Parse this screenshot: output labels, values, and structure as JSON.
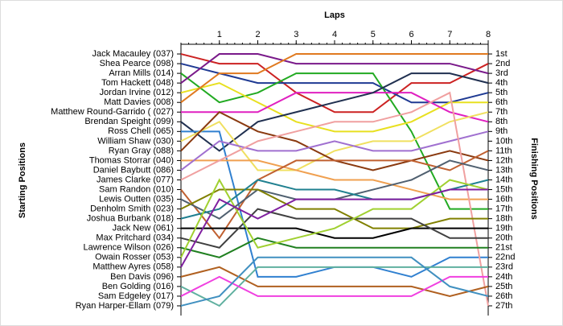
{
  "chart_data": {
    "type": "line",
    "x_title": "Laps",
    "y_title": "Starting Positions",
    "y2_title": "Finishing Positions",
    "x": [
      0,
      1,
      2,
      3,
      4,
      5,
      6,
      7,
      8
    ],
    "xlim": [
      0,
      8
    ],
    "xticks": [
      1,
      2,
      3,
      4,
      5,
      6,
      7,
      8
    ],
    "ylim": [
      0,
      28
    ],
    "y_inverted": true,
    "yticks": [
      {
        "value": 1,
        "label": "1st"
      },
      {
        "value": 2,
        "label": "2nd"
      },
      {
        "value": 3,
        "label": "3rd"
      },
      {
        "value": 4,
        "label": "4th"
      },
      {
        "value": 5,
        "label": "5th"
      },
      {
        "value": 6,
        "label": "6th"
      },
      {
        "value": 7,
        "label": "7th"
      },
      {
        "value": 8,
        "label": "8th"
      },
      {
        "value": 9,
        "label": "9th"
      },
      {
        "value": 10,
        "label": "10th"
      },
      {
        "value": 11,
        "label": "11th"
      },
      {
        "value": 12,
        "label": "12th"
      },
      {
        "value": 13,
        "label": "13th"
      },
      {
        "value": 14,
        "label": "14th"
      },
      {
        "value": 15,
        "label": "15th"
      },
      {
        "value": 16,
        "label": "16th"
      },
      {
        "value": 17,
        "label": "17th"
      },
      {
        "value": 18,
        "label": "18th"
      },
      {
        "value": 19,
        "label": "19th"
      },
      {
        "value": 20,
        "label": "20th"
      },
      {
        "value": 21,
        "label": "21st"
      },
      {
        "value": 22,
        "label": "22nd"
      },
      {
        "value": 23,
        "label": "23rd"
      },
      {
        "value": 24,
        "label": "24th"
      },
      {
        "value": 25,
        "label": "25th"
      },
      {
        "value": 26,
        "label": "26th"
      },
      {
        "value": 27,
        "label": "27th"
      }
    ],
    "series": [
      {
        "name": "Jack Macauley (037)",
        "color": "#cc2222",
        "values": [
          1,
          2,
          2,
          5,
          7,
          7,
          4,
          4,
          2
        ]
      },
      {
        "name": "Shea Pearce (098)",
        "color": "#1f3a93",
        "values": [
          2,
          3,
          4,
          4,
          4,
          4,
          6,
          6,
          5
        ]
      },
      {
        "name": "Arran Mills (014)",
        "color": "#22aa22",
        "values": [
          3,
          6,
          5,
          3,
          3,
          3,
          9,
          17,
          17
        ]
      },
      {
        "name": "Tom Hackett (048)",
        "color": "#7a1a8a",
        "values": [
          4,
          1,
          1,
          2,
          2,
          2,
          2,
          2,
          3
        ]
      },
      {
        "name": "Jordan Irvine (012)",
        "color": "#e8e020",
        "values": [
          5,
          4,
          6,
          8,
          9,
          9,
          8,
          6,
          6
        ]
      },
      {
        "name": "Matt Davies (008)",
        "color": "#e07a20",
        "values": [
          6,
          3,
          3,
          1,
          1,
          1,
          1,
          1,
          1
        ]
      },
      {
        "name": "Matthew Round-Garrido ( (027)",
        "color": "#e020c0",
        "values": [
          7,
          7,
          7,
          5,
          5,
          5,
          5,
          7,
          8
        ]
      },
      {
        "name": "Brendan Speight (099)",
        "color": "#203050",
        "values": [
          8,
          11,
          8,
          7,
          6,
          5,
          3,
          3,
          4
        ]
      },
      {
        "name": "Ross Chell (065)",
        "color": "#3080d0",
        "values": [
          9,
          9,
          24,
          24,
          23,
          23,
          24,
          22,
          22
        ]
      },
      {
        "name": "William Shaw (030)",
        "color": "#f0e060",
        "values": [
          10,
          8,
          13,
          13,
          11,
          10,
          10,
          8,
          7
        ]
      },
      {
        "name": "Ryan Gray (088)",
        "color": "#8a3a10",
        "values": [
          11,
          7,
          9,
          10,
          12,
          13,
          12,
          11,
          12
        ]
      },
      {
        "name": "Thomas Storrar (040)",
        "color": "#f0a050",
        "values": [
          12,
          12,
          12,
          13,
          14,
          14,
          15,
          16,
          16
        ]
      },
      {
        "name": "Daniel Baybutt (086)",
        "color": "#a070d0",
        "values": [
          13,
          10,
          11,
          11,
          10,
          11,
          11,
          10,
          9
        ]
      },
      {
        "name": "James Clarke (077)",
        "color": "#f0a0a0",
        "values": [
          14,
          12,
          10,
          9,
          8,
          8,
          7,
          5,
          27
        ]
      },
      {
        "name": "Sam Randon (010)",
        "color": "#c06030",
        "values": [
          15,
          20,
          14,
          12,
          12,
          12,
          12,
          13,
          11
        ]
      },
      {
        "name": "Lewis Outten (035)",
        "color": "#506070",
        "values": [
          16,
          18,
          15,
          16,
          16,
          15,
          14,
          12,
          13
        ]
      },
      {
        "name": "Denholm Smith (023)",
        "color": "#808000",
        "values": [
          17,
          15,
          15,
          17,
          17,
          19,
          19,
          18,
          18
        ]
      },
      {
        "name": "Joshua Burbank (018)",
        "color": "#208090",
        "values": [
          18,
          17,
          14,
          15,
          15,
          16,
          16,
          15,
          14
        ]
      },
      {
        "name": "Jack New (061)",
        "color": "#000000",
        "values": [
          19,
          19,
          19,
          19,
          20,
          20,
          19,
          19,
          19
        ]
      },
      {
        "name": "Max Pritchard (034)",
        "color": "#404040",
        "values": [
          20,
          21,
          17,
          18,
          18,
          18,
          18,
          20,
          20
        ]
      },
      {
        "name": "Lawrence Wilson (026)",
        "color": "#208020",
        "values": [
          21,
          22,
          20,
          21,
          21,
          21,
          21,
          21,
          21
        ]
      },
      {
        "name": "Owain Rosser (053)",
        "color": "#a0d030",
        "values": [
          22,
          14,
          21,
          20,
          19,
          17,
          17,
          14,
          15
        ]
      },
      {
        "name": "Matthew Ayres (058)",
        "color": "#8020a0",
        "values": [
          23,
          16,
          18,
          16,
          16,
          16,
          16,
          15,
          15
        ]
      },
      {
        "name": "Ben Davis (096)",
        "color": "#b06020",
        "values": [
          24,
          23,
          25,
          25,
          25,
          25,
          25,
          26,
          25
        ]
      },
      {
        "name": "Ben Golding (016)",
        "color": "#60b0a0",
        "values": [
          25,
          27,
          23,
          23,
          23,
          23,
          23,
          23,
          23
        ]
      },
      {
        "name": "Sam Edgeley (017)",
        "color": "#f040e0",
        "values": [
          26,
          24,
          26,
          26,
          26,
          26,
          26,
          24,
          24
        ]
      },
      {
        "name": "Ryan Harper-Ellam (079)",
        "color": "#4090c0",
        "values": [
          27,
          26,
          22,
          22,
          22,
          22,
          22,
          25,
          26
        ]
      }
    ]
  }
}
